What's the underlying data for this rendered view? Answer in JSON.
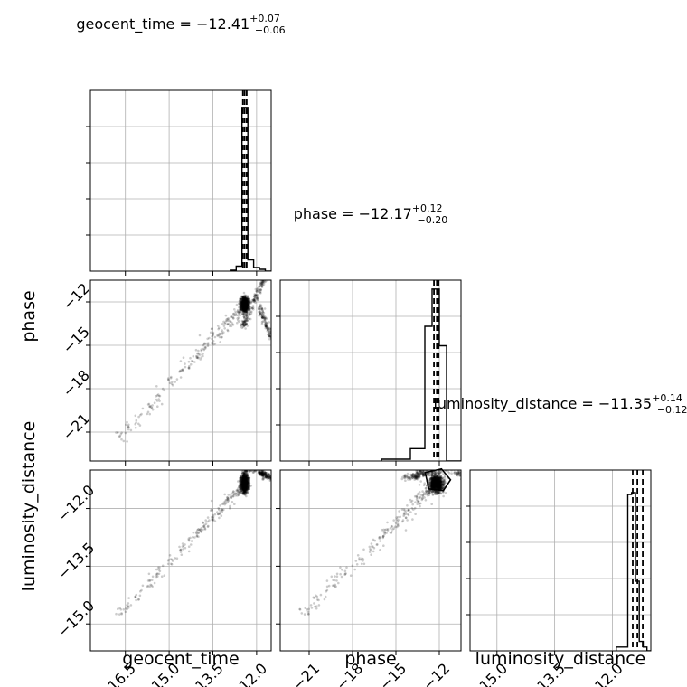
{
  "chart_data": {
    "type": "corner",
    "parameters": [
      {
        "name": "geocent_time",
        "label": "geocent_time",
        "median": "−12.41",
        "plus": "+0.07",
        "minus": "−0.06"
      },
      {
        "name": "phase",
        "label": "phase",
        "median": "−12.17",
        "plus": "+0.12",
        "minus": "−0.20"
      },
      {
        "name": "luminosity_distance",
        "label": "luminosity_distance",
        "median": "−11.35",
        "plus": "+0.14",
        "minus": "−0.12"
      }
    ],
    "titles": {
      "geocent_time": {
        "prefix": "geocent_time = −12.41",
        "sup": "+0.07",
        "sub": "−0.06"
      },
      "phase": {
        "prefix": "phase = −12.17",
        "sup": "+0.12",
        "sub": "−0.20"
      },
      "luminosity_distance": {
        "prefix": "luminosity_distance = −11.35",
        "sup": "+0.14",
        "sub": "−0.12"
      }
    },
    "axes": {
      "geocent_time": {
        "range": [
          -17.7,
          -11.5
        ],
        "ticks": [
          -16.5,
          -15.0,
          -13.5,
          -12.0
        ],
        "tick_labels": [
          "−16.5",
          "−15.0",
          "−13.5",
          "−12.0"
        ]
      },
      "phase": {
        "range": [
          -23.0,
          -10.5
        ],
        "ticks": [
          -21,
          -18,
          -15,
          -12
        ],
        "tick_labels": [
          "−21",
          "−18",
          "−15",
          "−12"
        ]
      },
      "luminosity_distance": {
        "range": [
          -15.7,
          -11.0
        ],
        "ticks": [
          -15.0,
          -13.5,
          -12.0
        ],
        "tick_labels": [
          "−15.0",
          "−13.5",
          "−12.0"
        ]
      }
    },
    "diagonal_histograms": {
      "geocent_time": {
        "bin_edges": [
          -12.9,
          -12.7,
          -12.5,
          -12.3,
          -12.1,
          -11.9,
          -11.7,
          -11.5
        ],
        "heights": [
          0.04,
          0.22,
          7.25,
          0.5,
          0.16,
          0.08,
          0.0
        ],
        "ymax": 8.0,
        "quantiles": [
          -12.47,
          -12.41,
          -12.34
        ]
      },
      "phase": {
        "bin_edges": [
          -16.0,
          -14.0,
          -13.0,
          -12.5,
          -12.0,
          -11.5,
          -11.0,
          -10.5
        ],
        "heights": [
          0.01,
          0.07,
          0.76,
          0.97,
          0.65,
          0.0,
          0.0
        ],
        "ymax": 1.02,
        "quantiles": [
          -12.37,
          -12.17,
          -12.05
        ]
      },
      "luminosity_distance": {
        "bin_edges": [
          -11.9,
          -11.6,
          -11.5,
          -11.4,
          -11.3,
          -11.2,
          -11.1,
          -11.0
        ],
        "heights": [
          0.02,
          0.83,
          0.84,
          0.37,
          0.05,
          0.02,
          0.0
        ],
        "ymax": 0.96,
        "quantiles": [
          -11.47,
          -11.35,
          -11.21
        ]
      }
    },
    "grid": true
  }
}
